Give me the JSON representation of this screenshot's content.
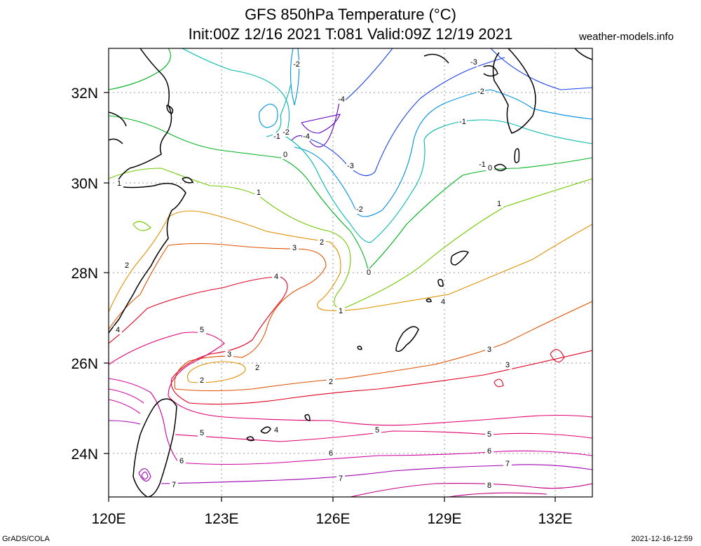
{
  "title": {
    "line1": "GFS 850hPa Temperature (°C)",
    "line2": "Init:00Z 12/16 2021 T:081 Valid:09Z 12/19 2021"
  },
  "source_label": "weather-models.info",
  "footer": {
    "credit": "GrADS/COLA",
    "timestamp": "2021-12-16-12:59"
  },
  "map": {
    "lon_ticks": [
      "120E",
      "123E",
      "126E",
      "129E",
      "132E"
    ],
    "lat_ticks": [
      "32N",
      "30N",
      "28N",
      "26N",
      "24N"
    ],
    "lon_range": [
      120,
      133
    ],
    "lat_range": [
      23,
      33
    ],
    "gridlines": "dotted"
  },
  "contour_labels": [
    {
      "text": "-2",
      "color": "#7a00d0"
    },
    {
      "text": "-4",
      "color": "#6000c0"
    },
    {
      "text": "-3",
      "color": "#1840e8"
    },
    {
      "text": "-2",
      "color": "#0090e0"
    },
    {
      "text": "-1",
      "color": "#00b8b0"
    },
    {
      "text": "-2",
      "color": "#0090e0"
    },
    {
      "text": "-1",
      "color": "#00b8b0"
    },
    {
      "text": "-2",
      "color": "#0090e0"
    },
    {
      "text": "-4",
      "color": "#6000c0"
    },
    {
      "text": "0",
      "color": "#00b020"
    },
    {
      "text": "0",
      "color": "#00b020"
    },
    {
      "text": "-3",
      "color": "#1840e8"
    },
    {
      "text": "-2",
      "color": "#0090e0"
    },
    {
      "text": "-1",
      "color": "#00b8b0"
    },
    {
      "text": "0",
      "color": "#00b020"
    },
    {
      "text": "1",
      "color": "#70c800"
    },
    {
      "text": "1",
      "color": "#70c800"
    },
    {
      "text": "1",
      "color": "#70c800"
    },
    {
      "text": "1",
      "color": "#70c800"
    },
    {
      "text": "2",
      "color": "#e09000"
    },
    {
      "text": "3",
      "color": "#e05000"
    },
    {
      "text": "2",
      "color": "#e09000"
    },
    {
      "text": "4",
      "color": "#e00020"
    },
    {
      "text": "2",
      "color": "#e09000"
    },
    {
      "text": "4",
      "color": "#e00020"
    },
    {
      "text": "5",
      "color": "#e00070"
    },
    {
      "text": "3",
      "color": "#e05000"
    },
    {
      "text": "2",
      "color": "#e09000"
    },
    {
      "text": "2",
      "color": "#e09000"
    },
    {
      "text": "3",
      "color": "#e05000"
    },
    {
      "text": "3",
      "color": "#e05000"
    },
    {
      "text": "4",
      "color": "#e00020"
    },
    {
      "text": "4",
      "color": "#e00020"
    },
    {
      "text": "5",
      "color": "#e00070"
    },
    {
      "text": "5",
      "color": "#e00070"
    },
    {
      "text": "5",
      "color": "#e00070"
    },
    {
      "text": "6",
      "color": "#d000a0"
    },
    {
      "text": "6",
      "color": "#d000a0"
    },
    {
      "text": "6",
      "color": "#d000a0"
    },
    {
      "text": "7",
      "color": "#a000b0"
    },
    {
      "text": "7",
      "color": "#a000b0"
    },
    {
      "text": "7",
      "color": "#a000b0"
    },
    {
      "text": "8",
      "color": "#c00080"
    }
  ],
  "contours": [
    {
      "level": "-3",
      "color": "#1840e8"
    },
    {
      "level": "-2",
      "color": "#0090e0"
    },
    {
      "level": "-1",
      "color": "#00b8b0"
    },
    {
      "level": "0",
      "color": "#00b020"
    },
    {
      "level": "1",
      "color": "#70c800"
    },
    {
      "level": "2",
      "color": "#e09000"
    },
    {
      "level": "3",
      "color": "#e05000"
    },
    {
      "level": "4",
      "color": "#e00020"
    },
    {
      "level": "5",
      "color": "#e00070"
    },
    {
      "level": "6",
      "color": "#d000a0"
    },
    {
      "level": "7",
      "color": "#a000b0"
    },
    {
      "level": "8",
      "color": "#c00080"
    }
  ]
}
